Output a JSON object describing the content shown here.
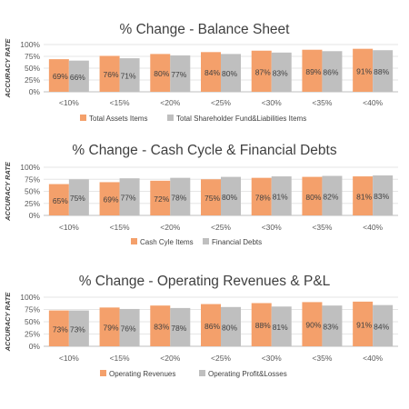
{
  "chart_data": [
    {
      "type": "bar",
      "title": "% Change - Balance Sheet",
      "ylabel": "ACCURACY RATE",
      "xlabel": "",
      "categories": [
        "<10%",
        "<15%",
        "<20%",
        "<25%",
        "<30%",
        "<35%",
        "<40%"
      ],
      "ylim": [
        0,
        100
      ],
      "yticks": [
        "0%",
        "25%",
        "50%",
        "75%",
        "100%"
      ],
      "legend": "bottom",
      "grid": true,
      "series": [
        {
          "name": "Total Assets Items",
          "color": "#f4a06b",
          "values": [
            69,
            76,
            80,
            84,
            87,
            89,
            91
          ],
          "labels": [
            "69%",
            "76%",
            "80%",
            "84%",
            "87%",
            "89%",
            "91%"
          ]
        },
        {
          "name": "Total Shareholder Fund&Liabilities Items",
          "color": "#bfbfbf",
          "values": [
            66,
            71,
            77,
            80,
            83,
            86,
            88
          ],
          "labels": [
            "66%",
            "71%",
            "77%",
            "80%",
            "83%",
            "86%",
            "88%"
          ]
        }
      ]
    },
    {
      "type": "bar",
      "title": "% Change - Cash Cycle & Financial Debts",
      "ylabel": "ACCURACY RATE",
      "xlabel": "",
      "categories": [
        "<10%",
        "<15%",
        "<20%",
        "<25%",
        "<30%",
        "<35%",
        "<40%"
      ],
      "ylim": [
        0,
        100
      ],
      "yticks": [
        "0%",
        "25%",
        "50%",
        "75%",
        "100%"
      ],
      "legend": "bottom",
      "grid": true,
      "series": [
        {
          "name": "Cash Cyle Items",
          "color": "#f4a06b",
          "values": [
            65,
            69,
            72,
            75,
            78,
            80,
            81
          ],
          "labels": [
            "65%",
            "69%",
            "72%",
            "75%",
            "78%",
            "80%",
            "81%"
          ]
        },
        {
          "name": "Financial Debts",
          "color": "#bfbfbf",
          "values": [
            75,
            77,
            78,
            80,
            81,
            82,
            83
          ],
          "labels": [
            "75%",
            "77%",
            "78%",
            "80%",
            "81%",
            "82%",
            "83%"
          ]
        }
      ]
    },
    {
      "type": "bar",
      "title": "% Change - Operating Revenues & P&L",
      "ylabel": "ACCURACY RATE",
      "xlabel": "",
      "categories": [
        "<10%",
        "<15%",
        "<20%",
        "<25%",
        "<30%",
        "<35%",
        "<40%"
      ],
      "ylim": [
        0,
        100
      ],
      "yticks": [
        "0%",
        "25%",
        "50%",
        "75%",
        "100%"
      ],
      "legend": "bottom",
      "grid": true,
      "series": [
        {
          "name": "Operating Revenues",
          "color": "#f4a06b",
          "values": [
            73,
            79,
            83,
            86,
            88,
            90,
            91
          ],
          "labels": [
            "73%",
            "79%",
            "83%",
            "86%",
            "88%",
            "90%",
            "91%"
          ]
        },
        {
          "name": "Operating Profit&Losses",
          "color": "#bfbfbf",
          "values": [
            73,
            76,
            78,
            80,
            81,
            83,
            84
          ],
          "labels": [
            "73%",
            "76%",
            "78%",
            "80%",
            "81%",
            "83%",
            "84%"
          ]
        }
      ]
    }
  ]
}
